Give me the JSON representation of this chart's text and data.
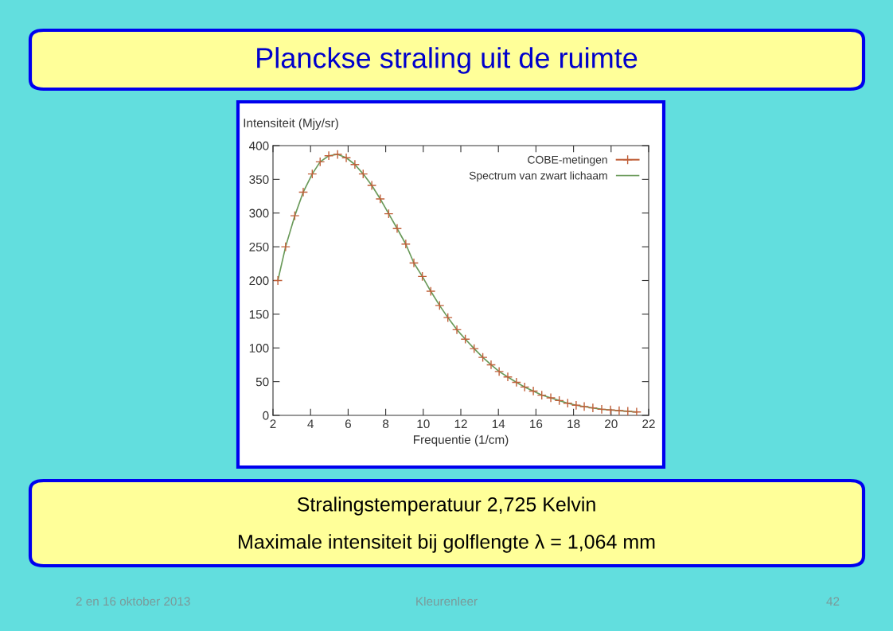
{
  "chart_data": {
    "type": "scatter",
    "title": "Planckse straling uit de ruimte",
    "xlabel": "Frequentie (1/cm)",
    "ylabel": "Intensiteit (Mjy/sr)",
    "xlim": [
      2,
      22
    ],
    "xticks": [
      2,
      4,
      6,
      8,
      10,
      12,
      14,
      16,
      18,
      20,
      22
    ],
    "ylim": [
      0,
      400
    ],
    "yticks": [
      0,
      50,
      100,
      150,
      200,
      250,
      300,
      350,
      400
    ],
    "grid": false,
    "legend": "top right",
    "series": [
      {
        "name": "COBE-metingen",
        "marker": "cross",
        "color": "#c0603a",
        "x": [
          2.26,
          2.67,
          3.16,
          3.61,
          4.09,
          4.51,
          4.97,
          5.44,
          5.9,
          6.36,
          6.8,
          7.26,
          7.71,
          8.16,
          8.61,
          9.07,
          9.5,
          9.95,
          10.4,
          10.87,
          11.31,
          11.79,
          12.24,
          12.71,
          13.17,
          13.61,
          14.04,
          14.5,
          14.96,
          15.4,
          15.86,
          16.31,
          16.79,
          17.24,
          17.69,
          18.14,
          18.57,
          19.03,
          19.5,
          19.97,
          20.43,
          20.89,
          21.36
        ],
        "values": [
          200,
          250,
          296,
          331,
          358,
          376,
          385,
          387,
          382,
          372,
          358,
          341,
          321,
          299,
          277,
          254,
          226,
          206,
          184,
          163,
          145,
          127,
          113,
          99,
          86,
          75,
          65,
          57,
          49,
          42,
          36,
          30,
          26,
          22,
          18,
          15,
          13,
          11,
          9,
          8,
          7,
          6,
          5
        ]
      },
      {
        "name": "Spectrum van zwart lichaam",
        "type": "line",
        "marker": "none",
        "line_style": "solid",
        "color": "#6a9a5a",
        "x": [
          2.26,
          2.67,
          3.16,
          3.61,
          4.09,
          4.51,
          4.97,
          5.44,
          5.9,
          6.36,
          6.8,
          7.26,
          7.71,
          8.16,
          8.61,
          9.07,
          9.5,
          9.95,
          10.4,
          10.87,
          11.31,
          11.79,
          12.24,
          12.71,
          13.17,
          13.61,
          14.04,
          14.5,
          14.96,
          15.4,
          15.86,
          16.31,
          16.79,
          17.24,
          17.69,
          18.14,
          18.57,
          19.03,
          19.5,
          19.97,
          20.43,
          20.89,
          21.36
        ],
        "values": [
          200,
          250,
          296,
          331,
          358,
          376,
          385,
          387,
          382,
          372,
          358,
          341,
          321,
          299,
          277,
          254,
          226,
          206,
          184,
          163,
          145,
          127,
          113,
          99,
          86,
          75,
          65,
          57,
          49,
          42,
          36,
          30,
          26,
          22,
          18,
          15,
          13,
          11,
          9,
          8,
          7,
          6,
          5
        ]
      }
    ],
    "annotations": [
      "Stralingstemperatuur 2,725 Kelvin",
      "Maximale intensiteit bij golflengte λ = 1,064 mm",
      "2 en 16 oktober 2013",
      "Kleurenleer",
      "42"
    ]
  }
}
